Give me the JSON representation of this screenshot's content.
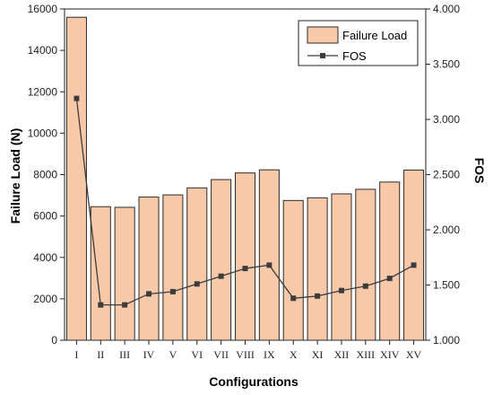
{
  "chart_data": {
    "type": "bar+line",
    "categories": [
      "I",
      "II",
      "III",
      "IV",
      "V",
      "VI",
      "VII",
      "VIII",
      "IX",
      "X",
      "XI",
      "XII",
      "XIII",
      "XIV",
      "XV"
    ],
    "series": [
      {
        "name": "Failure Load",
        "type": "bar",
        "axis": "left",
        "values": [
          15600,
          6450,
          6420,
          6920,
          7020,
          7360,
          7760,
          8080,
          8230,
          6750,
          6880,
          7070,
          7290,
          7640,
          8220
        ]
      },
      {
        "name": "FOS",
        "type": "line",
        "axis": "right",
        "values": [
          3.19,
          1.32,
          1.32,
          1.42,
          1.44,
          1.51,
          1.58,
          1.65,
          1.68,
          1.38,
          1.4,
          1.45,
          1.49,
          1.56,
          1.68
        ]
      }
    ],
    "xlabel": "Configurations",
    "ylabel": "Failure Load (N)",
    "y2label": "FOS",
    "ylim": [
      0,
      16000
    ],
    "y2lim": [
      1.0,
      4.0
    ],
    "yticks": [
      "0",
      "2000",
      "4000",
      "6000",
      "8000",
      "10000",
      "12000",
      "14000",
      "16000"
    ],
    "y2ticks": [
      "1.000",
      "1.500",
      "2.000",
      "2.500",
      "3.000",
      "3.500",
      "4.000"
    ],
    "legend_position": "top-right",
    "colors": {
      "bar_fill": "#f8c9a9",
      "bar_stroke": "#2b2b2b",
      "line": "#3c3c3c",
      "marker": "#3c3c3c"
    }
  }
}
